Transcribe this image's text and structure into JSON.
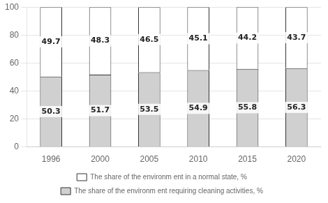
{
  "chart_data": {
    "type": "bar",
    "stacked": true,
    "categories": [
      "1996",
      "2000",
      "2005",
      "2010",
      "2015",
      "2020"
    ],
    "series": [
      {
        "name": "The share of the environm ent requiring cleaning activities, %",
        "color": "#d0d0d0",
        "values": [
          50.3,
          51.7,
          53.5,
          54.9,
          55.8,
          56.3
        ]
      },
      {
        "name": "The share of the environm ent in a normal state, %",
        "color": "#ffffff",
        "values": [
          49.7,
          48.3,
          46.5,
          45.1,
          44.2,
          43.7
        ]
      }
    ],
    "ylim": [
      0,
      100
    ],
    "yticks": [
      0,
      20,
      40,
      60,
      80,
      100
    ],
    "grid": true,
    "legend": "bottom",
    "data_labels": true
  }
}
